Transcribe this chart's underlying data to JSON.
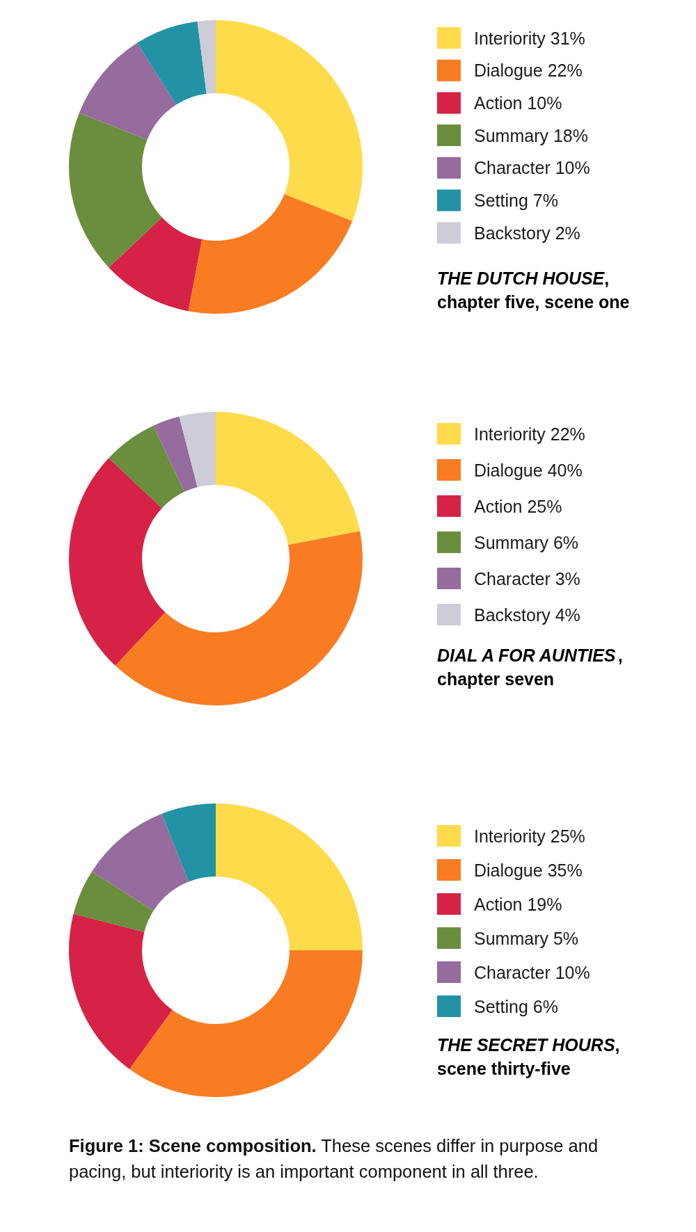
{
  "chart_data": [
    {
      "type": "donut",
      "title": "THE DUTCH HOUSE,",
      "subtitle": "chapter five, scene one",
      "categories": [
        "Interiority 31%",
        "Dialogue 22%",
        "Action 10%",
        "Summary 18%",
        "Character 10%",
        "Setting 7%",
        "Backstory 2%"
      ],
      "values": [
        31,
        22,
        10,
        18,
        10,
        7,
        2
      ],
      "colors": [
        "#fedb4b",
        "#f97c22",
        "#d62246",
        "#6a8e3d",
        "#966b9d",
        "#2392a5",
        "#cccdd6"
      ],
      "legend": "right"
    },
    {
      "type": "donut",
      "title": "DIAL A FOR AUNTIES,",
      "subtitle": "chapter seven",
      "categories": [
        "Interiority 22%",
        "Dialogue 40%",
        "Action 25%",
        "Summary 6%",
        "Character 3%",
        "Backstory 4%"
      ],
      "values": [
        22,
        40,
        25,
        6,
        3,
        4
      ],
      "colors": [
        "#fedb4b",
        "#f97c22",
        "#d62246",
        "#6a8e3d",
        "#966b9d",
        "#cccdd6"
      ],
      "legend": "right"
    },
    {
      "type": "donut",
      "title": "THE SECRET HOURS,",
      "subtitle": "scene thirty-five",
      "categories": [
        "Interiority 25%",
        "Dialogue 35%",
        "Action 19%",
        "Summary 5%",
        "Character 10%",
        "Setting 6%"
      ],
      "values": [
        25,
        35,
        19,
        5,
        10,
        6
      ],
      "colors": [
        "#fedb4b",
        "#f97c22",
        "#d62246",
        "#6a8e3d",
        "#966b9d",
        "#2392a5"
      ],
      "legend": "right",
      "annotations": [
        "Figure 1: Scene composition. These scenes differ in purpose and pacing, but interiority is an important component in all three."
      ]
    }
  ]
}
